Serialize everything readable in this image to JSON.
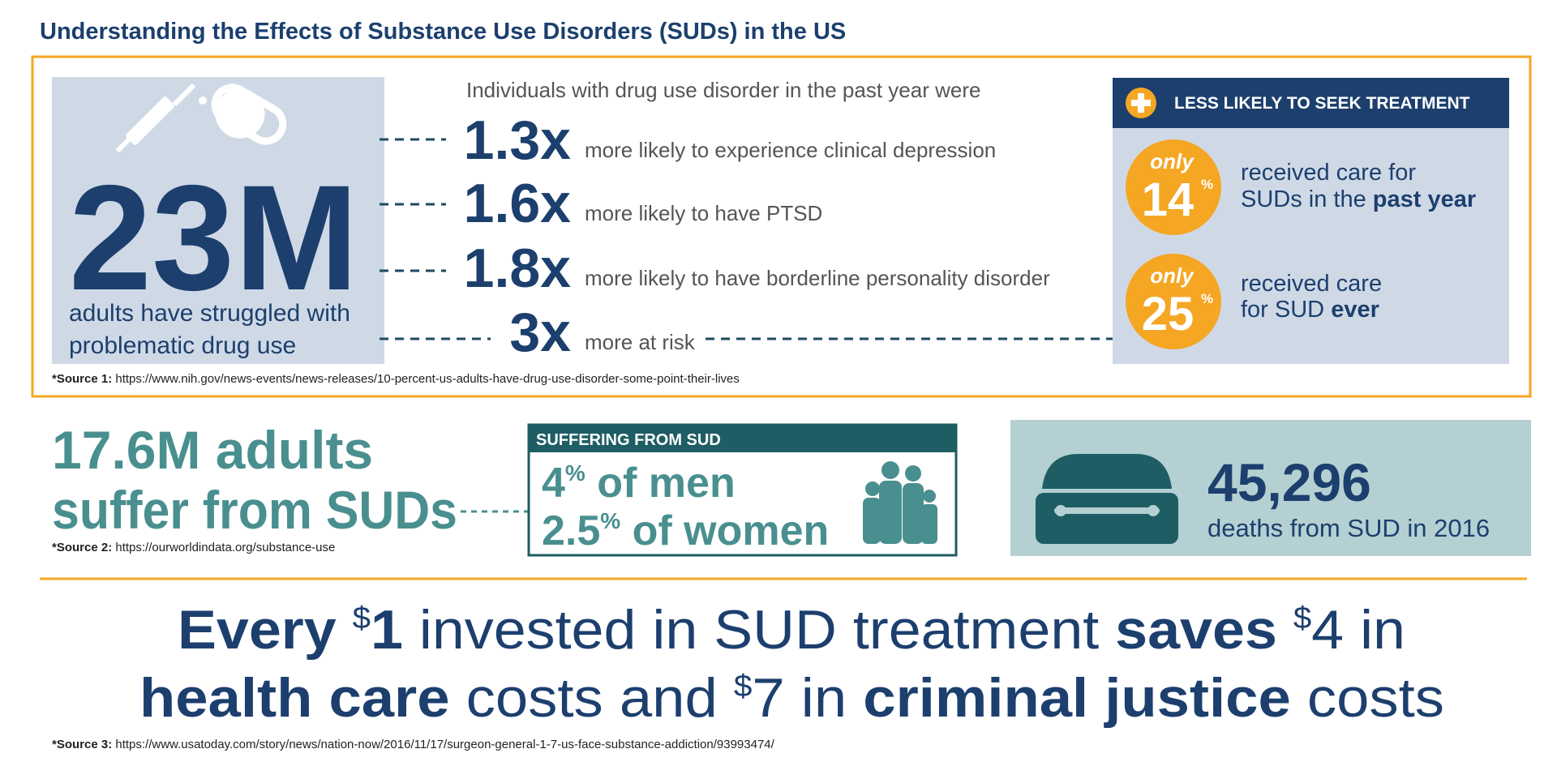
{
  "header": {
    "title": "Understanding the Effects of Substance Use Disorders (SUDs) in the US"
  },
  "drug_use": {
    "big_number": "23M",
    "caption": [
      "adults have struggled with",
      "problematic drug use"
    ],
    "intro": "Individuals with drug use disorder in the past year were",
    "rows": [
      {
        "multiplier": "1.3x",
        "text": "more likely to experience clinical depression"
      },
      {
        "multiplier": "1.6x",
        "text": "more likely to have PTSD"
      },
      {
        "multiplier": "1.8x",
        "text": "more likely to have borderline personality disorder"
      },
      {
        "multiplier": "3x",
        "text": "more at risk"
      }
    ],
    "source": {
      "label": "*Source 1:",
      "url": "https://www.nih.gov/news-events/news-releases/10-percent-us-adults-have-drug-use-disorder-some-point-their-lives"
    }
  },
  "treatment": {
    "heading": "LESS LIKELY TO SEEK TREATMENT",
    "items": [
      {
        "qualifier": "only",
        "number": "14",
        "unit": "%",
        "lines": [
          [
            "received care for"
          ],
          [
            "SUDs in the ",
            "past year"
          ]
        ]
      },
      {
        "qualifier": "only",
        "number": "25",
        "unit": "%",
        "lines": [
          [
            "received care"
          ],
          [
            "for SUD ",
            "ever"
          ]
        ]
      }
    ]
  },
  "prevalence": {
    "headline": [
      "17.6M adults",
      "suffer from SUDs"
    ],
    "source": {
      "label": "*Source 2:",
      "url": "https://ourworldindata.org/substance-use"
    },
    "box": {
      "heading": "SUFFERING FROM SUD",
      "lines": [
        [
          "4",
          "%",
          " of men"
        ],
        [
          "2.5",
          "%",
          " of women"
        ]
      ]
    }
  },
  "deaths": {
    "number": "45,296",
    "caption": "deaths from SUD in 2016"
  },
  "savings": {
    "lines": [
      [
        "Every ",
        "$",
        "1",
        " invested in SUD treatment ",
        "saves ",
        "$",
        "4 in"
      ],
      [
        "health care",
        " costs and ",
        "$",
        "7 in ",
        "criminal justice",
        " costs"
      ]
    ],
    "source": {
      "label": "*Source 3:",
      "url": "https://www.usatoday.com/story/news/nation-now/2016/11/17/surgeon-general-1-7-us-face-substance-addiction/93993474/"
    }
  }
}
